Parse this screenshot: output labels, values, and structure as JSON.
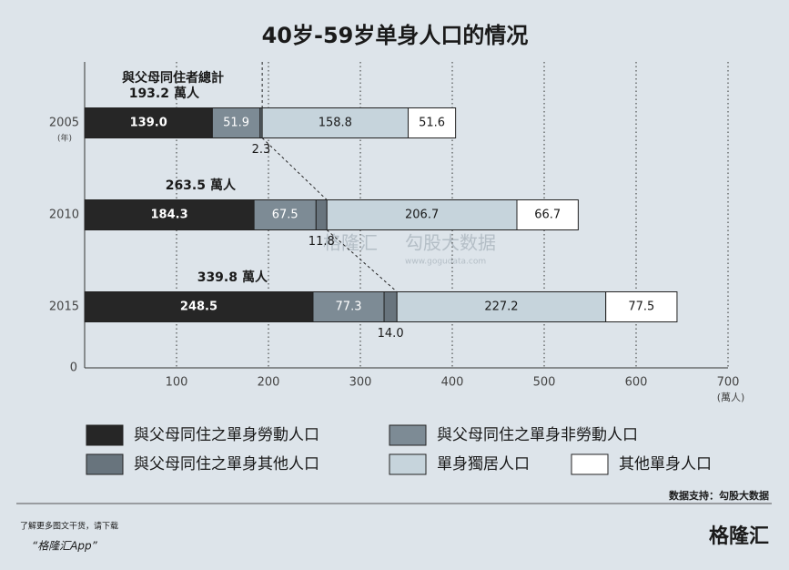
{
  "chart_data": {
    "type": "bar",
    "orientation": "horizontal",
    "stacked": true,
    "title": "40岁-59岁单身人口的情况",
    "categories": [
      "2005",
      "2010",
      "2015"
    ],
    "category_unit": "(年)",
    "x_unit": "(萬人)",
    "xlim": [
      0,
      700
    ],
    "xticks": [
      0,
      100,
      200,
      300,
      400,
      500,
      600,
      700
    ],
    "grid": true,
    "series": [
      {
        "name": "與父母同住之單身勞動人口",
        "color": "#262626",
        "values": [
          139.0,
          184.3,
          248.5
        ],
        "value_labels": [
          "139.0",
          "184.3",
          "248.5"
        ]
      },
      {
        "name": "與父母同住之單身非勞動人口",
        "color": "#7d8b95",
        "values": [
          51.9,
          67.5,
          77.3
        ],
        "value_labels": [
          "51.9",
          "67.5",
          "77.3"
        ]
      },
      {
        "name": "與父母同住之單身其他人口",
        "color": "#68747d",
        "values": [
          2.3,
          11.8,
          14.0
        ],
        "value_labels": [
          "2.3",
          "11.8",
          "14.0"
        ]
      },
      {
        "name": "單身獨居人口",
        "color": "#c6d4dc",
        "values": [
          158.8,
          206.7,
          227.2
        ],
        "value_labels": [
          "158.8",
          "206.7",
          "227.2"
        ]
      },
      {
        "name": "其他單身人口",
        "color": "#ffffff",
        "values": [
          51.6,
          66.7,
          77.5
        ],
        "value_labels": [
          "51.6",
          "66.7",
          "77.5"
        ]
      }
    ],
    "totals": {
      "label": "與父母同住者總計",
      "values": [
        193.2,
        263.5,
        339.8
      ],
      "unit": "萬人"
    }
  },
  "source": "数据支持：勾股大数据",
  "footer": {
    "promo": "了解更多图文干货，请下载",
    "app": "“格隆汇App”",
    "logo": "格隆汇"
  },
  "watermark": {
    "brand": "格隆汇",
    "site": "勾股大数据",
    "url": "www.gogudata.com"
  }
}
